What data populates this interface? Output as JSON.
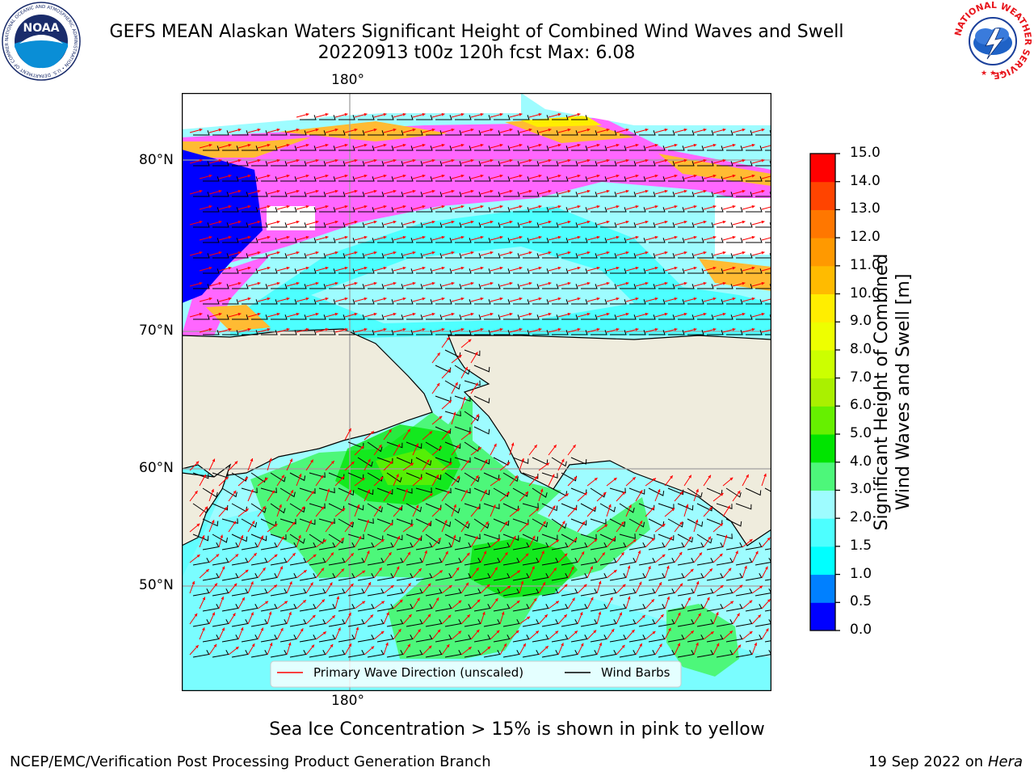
{
  "header": {
    "title_line1": "GEFS MEAN Alaskan Waters Significant Height of Combined Wind Waves and Swell",
    "title_line2": "20220913 t00z 120h fcst   Max: 6.08",
    "noaa_logo_text": "NOAA",
    "noaa_ring_text": "NATIONAL OCEANIC AND ATMOSPHERIC ADMINISTRATION • U.S. DEPARTMENT OF COMMERCE",
    "nws_ring_text": "NATIONAL WEATHER SERVICE"
  },
  "map": {
    "lon_label_top": "180°",
    "lon_label_bottom": "180°",
    "lat_labels": [
      "80°N",
      "70°N",
      "60°N",
      "50°N"
    ],
    "colors": {
      "ocean_low": "#9efcff",
      "ocean_mid": "#4dffff",
      "wave_3": "#4df77a",
      "wave_4": "#00e400",
      "wave_5": "#66f000",
      "ice_pink": "#ff66ff",
      "ice_orange": "#ffbb33",
      "ice_yellow": "#ffee00",
      "ice_blue": "#0000ff",
      "land": "#efecdd",
      "wave_arrow": "#ff0000",
      "wind_barb": "#000000"
    },
    "legend": {
      "wave_label": "Primary Wave Direction (unscaled)",
      "barb_label": "Wind Barbs"
    }
  },
  "colorbar": {
    "title": "Significant Height of Combined\nWind Waves and Swell [m]",
    "title_line1": "Significant Height of Combined",
    "title_line2": "Wind Waves and Swell [m]",
    "ticks": [
      "0.0",
      "0.5",
      "1.0",
      "1.5",
      "2.0",
      "3.0",
      "4.0",
      "5.0",
      "6.0",
      "7.0",
      "8.0",
      "9.0",
      "10.0",
      "11.0",
      "12.0",
      "13.0",
      "14.0",
      "15.0"
    ],
    "colors": [
      "#0000ff",
      "#0080ff",
      "#00ffff",
      "#4dffff",
      "#9efcff",
      "#4df77a",
      "#00e400",
      "#66f000",
      "#aaf000",
      "#ccff00",
      "#eeff00",
      "#ffee00",
      "#ffbb00",
      "#ff9900",
      "#ff7700",
      "#ff4400",
      "#ff0000"
    ]
  },
  "footer": {
    "note": "Sea Ice Concentration > 15% is shown in pink to yellow",
    "org": "NCEP/EMC/Verification Post Processing Product Generation Branch",
    "date": "19 Sep 2022 on",
    "machine": "Hera"
  }
}
